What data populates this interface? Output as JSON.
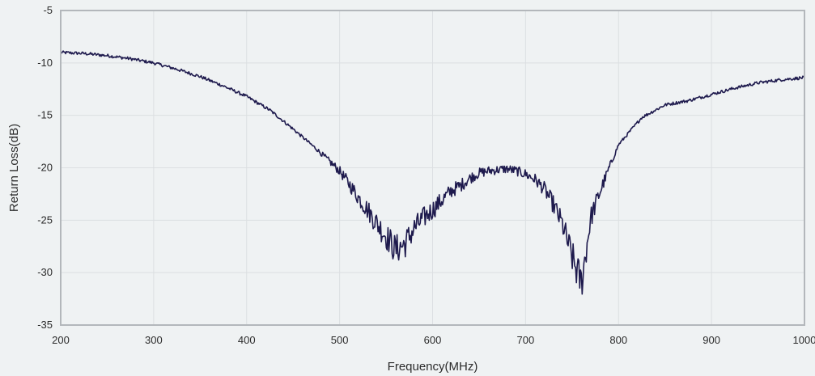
{
  "colors": {
    "background": "#eff2f3",
    "plot_background": "#eff2f3",
    "grid": "#dcdfe2",
    "frame": "#b3b7bb",
    "line": "#1e1a4d",
    "text": "#2b2b2b"
  },
  "chart_data": {
    "type": "line",
    "title": "",
    "xlabel": "Frequency(MHz)",
    "ylabel": "Return Loss(dB)",
    "xlim": [
      200,
      1000
    ],
    "ylim": [
      -35,
      -5
    ],
    "x_ticks": [
      200,
      300,
      400,
      500,
      600,
      700,
      800,
      900,
      1000
    ],
    "y_ticks": [
      -35,
      -30,
      -25,
      -20,
      -15,
      -10,
      -5
    ],
    "x_tick_labels": [
      "200",
      "300",
      "400",
      "500",
      "600",
      "700",
      "800",
      "900",
      "1000"
    ],
    "y_tick_labels": [
      "-35",
      "-30",
      "-25",
      "-20",
      "-15",
      "-10",
      "-5"
    ],
    "grid": true,
    "legend": "none",
    "series": [
      {
        "x": [
          200,
          225,
          250,
          275,
          300,
          325,
          350,
          375,
          400,
          425,
          450,
          475,
          500,
          510,
          520,
          530,
          540,
          550,
          560,
          570,
          580,
          590,
          600,
          610,
          620,
          630,
          640,
          650,
          660,
          670,
          680,
          690,
          700,
          710,
          720,
          730,
          740,
          745,
          750,
          755,
          760,
          765,
          770,
          780,
          790,
          800,
          825,
          850,
          875,
          900,
          925,
          950,
          975,
          1000
        ],
        "y": [
          -9.0,
          -9.1,
          -9.3,
          -9.6,
          -10.0,
          -10.6,
          -11.3,
          -12.2,
          -13.2,
          -14.5,
          -16.3,
          -18.2,
          -20.3,
          -21.5,
          -22.8,
          -24.0,
          -25.3,
          -26.5,
          -27.8,
          -27.3,
          -25.8,
          -24.8,
          -24.0,
          -23.1,
          -22.2,
          -21.7,
          -21.0,
          -20.5,
          -20.3,
          -20.2,
          -20.1,
          -20.3,
          -20.6,
          -21.1,
          -22.0,
          -23.5,
          -25.5,
          -27.0,
          -28.5,
          -29.8,
          -31.0,
          -28.0,
          -24.8,
          -22.3,
          -20.0,
          -17.8,
          -15.2,
          -14.0,
          -13.6,
          -13.0,
          -12.4,
          -11.9,
          -11.6,
          -11.4
        ]
      }
    ]
  }
}
